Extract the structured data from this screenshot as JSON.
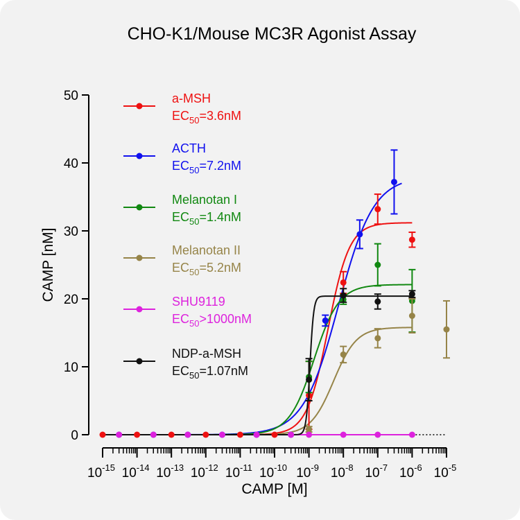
{
  "chart_data": {
    "type": "scatter",
    "title": "CHO-K1/Mouse MC3R Agonist Assay",
    "xlabel": "CAMP [M]",
    "ylabel": "CAMP [nM]",
    "xscale": "log",
    "xlim": [
      1e-15,
      1e-05
    ],
    "ylim": [
      0,
      50
    ],
    "yticks": [
      0,
      10,
      20,
      30,
      40,
      50
    ],
    "xtick_exponents": [
      -15,
      -14,
      -13,
      -12,
      -11,
      -10,
      -9,
      -8,
      -7,
      -6,
      -5
    ],
    "grid": false,
    "legend_position": "top-left",
    "series": [
      {
        "name": "a-MSH",
        "ec50_text": "=3.6nM",
        "color": "#ee1111",
        "fit": {
          "bottom": 0,
          "top": 31.2,
          "ec50": 3.6e-09,
          "hill": 1.4
        },
        "points": [
          {
            "x": 1e-15,
            "y": 0
          },
          {
            "x": 1e-14,
            "y": 0
          },
          {
            "x": 1e-13,
            "y": 0
          },
          {
            "x": 1e-12,
            "y": 0
          },
          {
            "x": 1e-11,
            "y": 0
          },
          {
            "x": 1e-10,
            "y": 0
          },
          {
            "x": 1e-09,
            "y": 5.8,
            "err": 5.0
          },
          {
            "x": 1e-08,
            "y": 22.4,
            "err": 1.6
          },
          {
            "x": 1e-07,
            "y": 33.2,
            "err": 2.2
          },
          {
            "x": 1e-06,
            "y": 28.7,
            "err": 1.1
          }
        ]
      },
      {
        "name": "ACTH",
        "ec50_text": "=7.2nM",
        "color": "#1111ee",
        "fit": {
          "bottom": 0,
          "top": 38.0,
          "ec50": 7.2e-09,
          "hill": 0.85
        },
        "points": [
          {
            "x": 3e-15,
            "y": 0
          },
          {
            "x": 3e-14,
            "y": 0
          },
          {
            "x": 3e-13,
            "y": 0
          },
          {
            "x": 3e-12,
            "y": 0
          },
          {
            "x": 3e-11,
            "y": 0
          },
          {
            "x": 3e-10,
            "y": 0
          },
          {
            "x": 3e-09,
            "y": 16.8,
            "err": 0.8
          },
          {
            "x": 3e-08,
            "y": 29.5,
            "err": 2.1
          },
          {
            "x": 3e-07,
            "y": 37.2,
            "err": 4.7
          }
        ]
      },
      {
        "name": "Melanotan I",
        "ec50_text": "=1.4nM",
        "color": "#118811",
        "fit": {
          "bottom": 0,
          "top": 22.1,
          "ec50": 1.4e-09,
          "hill": 1.2
        },
        "points": [
          {
            "x": 1e-09,
            "y": 8.5,
            "err": 2.3
          },
          {
            "x": 1e-08,
            "y": 19.9,
            "err": 0.7
          },
          {
            "x": 1e-07,
            "y": 25.0,
            "err": 3.1
          },
          {
            "x": 1e-06,
            "y": 19.7,
            "err": 4.6
          }
        ]
      },
      {
        "name": "Melanotan II",
        "ec50_text": "=5.2nM",
        "color": "#968448",
        "fit": {
          "bottom": 0,
          "top": 15.8,
          "ec50": 5.2e-09,
          "hill": 1.3
        },
        "points": [
          {
            "x": 1e-09,
            "y": 0.8,
            "err": 0.4
          },
          {
            "x": 1e-08,
            "y": 11.8,
            "err": 1.2
          },
          {
            "x": 1e-07,
            "y": 14.2,
            "err": 1.4
          },
          {
            "x": 1e-06,
            "y": 17.5,
            "err": 2.5
          },
          {
            "x": 1e-05,
            "y": 15.5,
            "err": 4.2
          }
        ]
      },
      {
        "name": "SHU9119",
        "ec50_text": ">1000nM",
        "color": "#dd22dd",
        "fit": {
          "bottom": 0,
          "top": 0,
          "ec50": 1e-06,
          "hill": 1
        },
        "points": [
          {
            "x": 3e-15,
            "y": 0
          },
          {
            "x": 3e-14,
            "y": 0
          },
          {
            "x": 3e-13,
            "y": 0
          },
          {
            "x": 3e-12,
            "y": 0
          },
          {
            "x": 3e-11,
            "y": 0
          },
          {
            "x": 3e-10,
            "y": 0
          },
          {
            "x": 1e-09,
            "y": 0
          },
          {
            "x": 1e-08,
            "y": 0
          },
          {
            "x": 1e-07,
            "y": 0
          },
          {
            "x": 1e-06,
            "y": 0
          }
        ]
      },
      {
        "name": "NDP-a-MSH",
        "ec50_text": "=1.07nM",
        "color": "#111111",
        "fit": {
          "bottom": 0,
          "top": 20.4,
          "ec50": 1.07e-09,
          "hill": 8.0
        },
        "points": [
          {
            "x": 1e-09,
            "y": 8.1,
            "err": 3.1
          },
          {
            "x": 1e-08,
            "y": 20.5,
            "err": 1.0
          },
          {
            "x": 1e-07,
            "y": 19.6,
            "err": 1.1
          },
          {
            "x": 1e-06,
            "y": 20.7,
            "err": 0.5
          }
        ]
      }
    ],
    "ec50_label": "EC",
    "ec50_subscript": "50"
  }
}
